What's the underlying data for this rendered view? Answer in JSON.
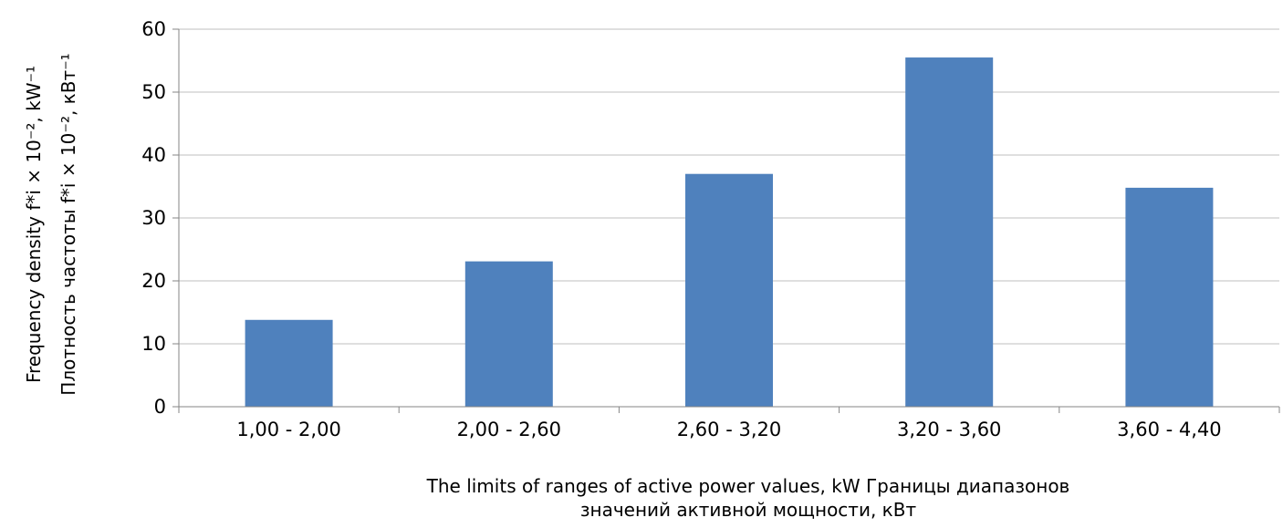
{
  "chart_data": {
    "type": "bar",
    "categories": [
      "1,00 - 2,00",
      "2,00 - 2,60",
      "2,60 - 3,20",
      "3,20 - 3,60",
      "3,60 - 4,40"
    ],
    "values": [
      13.8,
      23.1,
      37.0,
      55.5,
      34.8
    ],
    "ylim": [
      0,
      60
    ],
    "yticks": [
      "0",
      "10",
      "20",
      "30",
      "40",
      "50",
      "60"
    ],
    "ylabel_line1": "Frequency density  f*i × 10⁻², kW⁻¹",
    "ylabel_line2": "Плотность частоты f*i × 10⁻², кВт⁻¹",
    "xlabel_line1": "The limits of ranges of active power values, kW Границы диапазонов",
    "xlabel_line2": "значений активной мощности, кВт",
    "grid": true,
    "bar_color": "#4f81bd",
    "grid_color": "#bfbfbf"
  }
}
